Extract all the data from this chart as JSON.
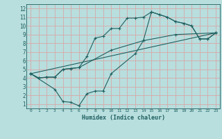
{
  "xlabel": "Humidex (Indice chaleur)",
  "xlim": [
    -0.5,
    23.5
  ],
  "ylim": [
    0.5,
    12.5
  ],
  "xticks": [
    0,
    1,
    2,
    3,
    4,
    5,
    6,
    7,
    8,
    9,
    10,
    11,
    12,
    13,
    14,
    15,
    16,
    17,
    18,
    19,
    20,
    21,
    22,
    23
  ],
  "yticks": [
    1,
    2,
    3,
    4,
    5,
    6,
    7,
    8,
    9,
    10,
    11,
    12
  ],
  "bg_color": "#b8dede",
  "line_color": "#206060",
  "grid_color": "#d8a8a8",
  "lines": [
    [
      [
        0,
        4.5
      ],
      [
        1,
        4.0
      ],
      [
        2,
        4.1
      ],
      [
        3,
        4.1
      ],
      [
        4,
        5.0
      ],
      [
        5,
        5.1
      ],
      [
        6,
        5.2
      ],
      [
        7,
        6.5
      ],
      [
        8,
        8.6
      ],
      [
        9,
        8.8
      ],
      [
        10,
        9.7
      ],
      [
        11,
        9.7
      ],
      [
        12,
        10.9
      ],
      [
        13,
        10.9
      ],
      [
        14,
        11.0
      ],
      [
        15,
        11.6
      ],
      [
        16,
        11.3
      ],
      [
        17,
        11.0
      ],
      [
        18,
        10.5
      ],
      [
        19,
        10.3
      ],
      [
        20,
        10.0
      ],
      [
        21,
        8.5
      ],
      [
        22,
        8.5
      ],
      [
        23,
        9.2
      ]
    ],
    [
      [
        0,
        4.5
      ],
      [
        1,
        4.0
      ],
      [
        2,
        4.1
      ],
      [
        3,
        4.1
      ],
      [
        4,
        5.0
      ],
      [
        5,
        5.1
      ],
      [
        6,
        5.2
      ],
      [
        10,
        7.2
      ],
      [
        14,
        8.3
      ],
      [
        18,
        9.0
      ],
      [
        23,
        9.2
      ]
    ],
    [
      [
        0,
        4.5
      ],
      [
        3,
        2.7
      ],
      [
        4,
        1.3
      ],
      [
        5,
        1.2
      ],
      [
        6,
        0.8
      ],
      [
        7,
        2.2
      ],
      [
        8,
        2.5
      ],
      [
        9,
        2.5
      ],
      [
        10,
        4.5
      ],
      [
        13,
        6.8
      ],
      [
        14,
        8.3
      ],
      [
        15,
        11.6
      ],
      [
        16,
        11.3
      ],
      [
        17,
        11.0
      ],
      [
        18,
        10.5
      ],
      [
        19,
        10.3
      ],
      [
        20,
        10.0
      ],
      [
        21,
        8.5
      ],
      [
        22,
        8.5
      ],
      [
        23,
        9.2
      ]
    ],
    [
      [
        0,
        4.5
      ],
      [
        23,
        9.2
      ]
    ]
  ]
}
